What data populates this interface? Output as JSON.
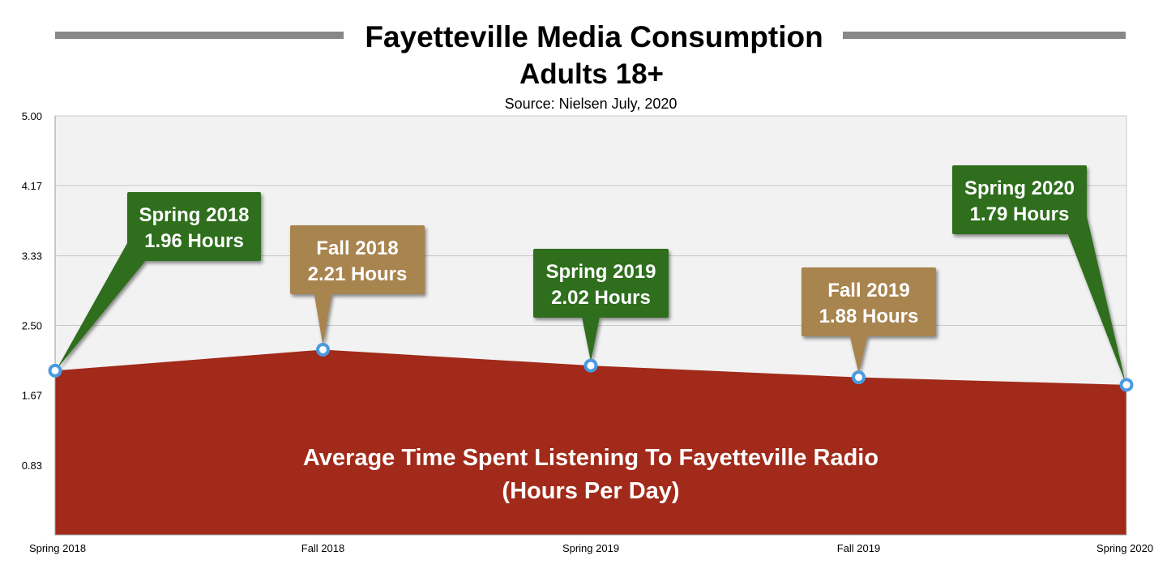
{
  "chart_data": {
    "type": "area",
    "title": "Fayetteville Media Consumption",
    "subtitle": "Adults 18+",
    "source": "Source: Nielsen July, 2020",
    "categories": [
      "Spring 2018",
      "Fall 2018",
      "Spring 2019",
      "Fall 2019",
      "Spring 2020"
    ],
    "values": [
      1.96,
      2.21,
      2.02,
      1.88,
      1.79
    ],
    "ylim": [
      0,
      5
    ],
    "yticks": [
      "0.83",
      "1.67",
      "2.50",
      "3.33",
      "4.17",
      "5.00"
    ],
    "area_label": [
      "Average Time Spent Listening To Fayetteville Radio",
      "(Hours Per Day)"
    ],
    "callouts": [
      {
        "line1": "Spring 2018",
        "line2": "1.96 Hours",
        "color": "#2f6e1e"
      },
      {
        "line1": "Fall 2018",
        "line2": "2.21 Hours",
        "color": "#a8844f"
      },
      {
        "line1": "Spring 2019",
        "line2": "2.02 Hours",
        "color": "#2f6e1e"
      },
      {
        "line1": "Fall 2019",
        "line2": "1.88 Hours",
        "color": "#a8844f"
      },
      {
        "line1": "Spring 2020",
        "line2": "1.79 Hours",
        "color": "#2f6e1e"
      }
    ],
    "grid": true,
    "colors": {
      "area": "#a12a1a",
      "plot_background": "#f2f2f2",
      "marker": "#4a9ae0",
      "title_bar": "#888888"
    }
  }
}
